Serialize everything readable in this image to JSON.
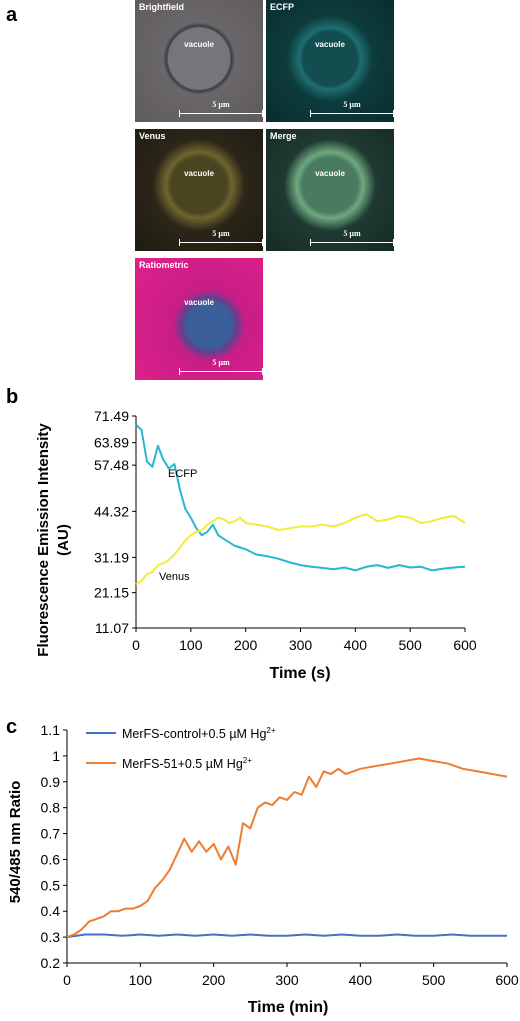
{
  "panels": {
    "a": {
      "letter": "a",
      "images": [
        {
          "label": "Brightfield",
          "vacuole": "vacuole",
          "scale": "5 µm"
        },
        {
          "label": "ECFP",
          "vacuole": "vacuole",
          "scale": "5 µm"
        },
        {
          "label": "Venus",
          "vacuole": "vacuole",
          "scale": "5 µm"
        },
        {
          "label": "Merge",
          "vacuole": "vacuole",
          "scale": "5 µm"
        },
        {
          "label": "Ratiometric",
          "vacuole": "vacuole",
          "scale": "5 µm"
        }
      ],
      "colors": {
        "brightfield": "#5e5a5d",
        "ecfp": "#0d3b3c",
        "venus": "#2b2618",
        "merge": "#1f3a32",
        "ratiometric": "#e0208a"
      }
    },
    "b": {
      "letter": "b"
    },
    "c": {
      "letter": "c"
    }
  },
  "chart_data": [
    {
      "type": "line",
      "panel": "b",
      "title": "",
      "xlabel": "Time (s)",
      "ylabel": "Fluorescence Emission Intensity (AU)",
      "ylabel_lines": [
        "Fluorescence Emission Intensity",
        "(AU)"
      ],
      "xlim": [
        0,
        600
      ],
      "ylim": [
        11.07,
        71.49
      ],
      "xticks": [
        0,
        100,
        200,
        300,
        400,
        500,
        600
      ],
      "yticks": [
        11.07,
        21.15,
        31.19,
        44.32,
        57.48,
        63.89,
        71.49
      ],
      "ytick_labels": [
        "11.07",
        "21.15",
        "31.19",
        "44.32",
        "57.48",
        "63.89",
        "71.49"
      ],
      "grid": false,
      "series": [
        {
          "name": "ECFP",
          "color": "#25b8cf",
          "x": [
            0,
            10,
            20,
            30,
            40,
            50,
            60,
            70,
            80,
            90,
            100,
            110,
            120,
            130,
            140,
            150,
            160,
            170,
            180,
            190,
            200,
            220,
            240,
            260,
            280,
            300,
            320,
            340,
            360,
            380,
            400,
            420,
            440,
            460,
            480,
            500,
            520,
            540,
            560,
            580,
            600
          ],
          "y": [
            69.0,
            67.5,
            58.5,
            57.0,
            63.0,
            59.0,
            56.5,
            57.8,
            50.5,
            45.0,
            42.5,
            39.5,
            37.5,
            38.5,
            40.5,
            37.5,
            36.5,
            35.5,
            34.5,
            34.0,
            33.5,
            32.0,
            31.5,
            30.8,
            29.8,
            29.0,
            28.5,
            28.2,
            27.8,
            28.3,
            27.5,
            28.5,
            29.0,
            28.2,
            29.0,
            28.3,
            28.5,
            27.5,
            28.0,
            28.3,
            28.5
          ]
        },
        {
          "name": "Venus",
          "color": "#f0ec3a",
          "x": [
            0,
            10,
            20,
            30,
            40,
            50,
            60,
            70,
            80,
            90,
            100,
            110,
            120,
            130,
            140,
            150,
            160,
            170,
            180,
            190,
            200,
            220,
            240,
            260,
            280,
            300,
            320,
            340,
            360,
            380,
            400,
            420,
            440,
            460,
            480,
            500,
            520,
            540,
            560,
            580,
            600
          ],
          "y": [
            23.5,
            24.5,
            26.5,
            27.0,
            29.0,
            29.5,
            30.5,
            32.0,
            34.0,
            36.0,
            37.5,
            38.5,
            39.0,
            40.5,
            41.5,
            42.5,
            42.0,
            41.0,
            41.5,
            42.5,
            41.0,
            40.5,
            40.0,
            39.0,
            39.5,
            40.0,
            40.0,
            40.5,
            40.0,
            41.0,
            42.5,
            43.5,
            41.5,
            42.0,
            43.0,
            42.5,
            41.0,
            41.5,
            42.5,
            43.0,
            41.0
          ]
        }
      ]
    },
    {
      "type": "line",
      "panel": "c",
      "title": "",
      "xlabel": "Time (min)",
      "ylabel": "540/485 nm Ratio",
      "xlim": [
        0,
        600
      ],
      "ylim": [
        0.2,
        1.1
      ],
      "xticks": [
        0,
        100,
        200,
        300,
        400,
        500,
        600
      ],
      "yticks": [
        0.2,
        0.3,
        0.4,
        0.5,
        0.6,
        0.7,
        0.8,
        0.9,
        1.0,
        1.1
      ],
      "ytick_labels": [
        "0.2",
        "0.3",
        "0.4",
        "0.5",
        "0.6",
        "0.7",
        "0.8",
        "0.9",
        "1",
        "1.1"
      ],
      "grid": false,
      "legend": "top-left",
      "series": [
        {
          "name": "MerFS-control+0.5 µM Hg",
          "name_sup": "2+",
          "color": "#4472c4",
          "x": [
            0,
            25,
            50,
            75,
            100,
            125,
            150,
            175,
            200,
            225,
            250,
            275,
            300,
            325,
            350,
            375,
            400,
            425,
            450,
            475,
            500,
            525,
            550,
            575,
            600
          ],
          "y": [
            0.3,
            0.31,
            0.31,
            0.305,
            0.31,
            0.305,
            0.31,
            0.305,
            0.31,
            0.305,
            0.31,
            0.305,
            0.305,
            0.31,
            0.305,
            0.31,
            0.305,
            0.305,
            0.31,
            0.305,
            0.305,
            0.31,
            0.305,
            0.305,
            0.305
          ]
        },
        {
          "name": "MerFS-51+0.5 µM Hg",
          "name_sup": "2+",
          "color": "#ed7d31",
          "x": [
            0,
            10,
            20,
            30,
            40,
            50,
            60,
            70,
            80,
            90,
            100,
            110,
            120,
            130,
            140,
            150,
            160,
            170,
            180,
            190,
            200,
            210,
            220,
            230,
            240,
            250,
            260,
            270,
            280,
            290,
            300,
            310,
            320,
            330,
            340,
            350,
            360,
            370,
            380,
            390,
            400,
            420,
            440,
            460,
            480,
            500,
            520,
            540,
            560,
            580,
            600
          ],
          "y": [
            0.3,
            0.31,
            0.33,
            0.36,
            0.37,
            0.38,
            0.4,
            0.4,
            0.41,
            0.41,
            0.42,
            0.44,
            0.49,
            0.52,
            0.56,
            0.62,
            0.68,
            0.63,
            0.67,
            0.63,
            0.66,
            0.6,
            0.65,
            0.58,
            0.74,
            0.72,
            0.8,
            0.82,
            0.81,
            0.84,
            0.83,
            0.86,
            0.85,
            0.92,
            0.88,
            0.94,
            0.93,
            0.95,
            0.93,
            0.94,
            0.95,
            0.96,
            0.97,
            0.98,
            0.99,
            0.98,
            0.97,
            0.95,
            0.94,
            0.93,
            0.92
          ]
        }
      ]
    }
  ]
}
